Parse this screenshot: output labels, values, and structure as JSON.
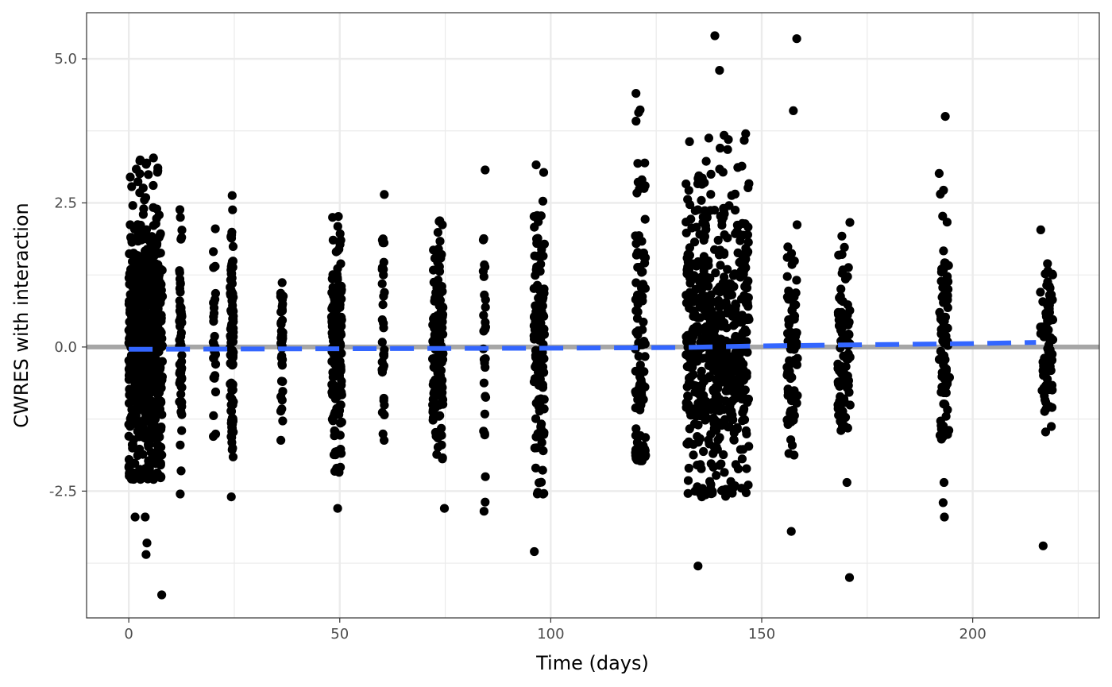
{
  "chart_data": {
    "type": "scatter",
    "xlabel": "Time (days)",
    "ylabel": "CWRES with interaction",
    "xlim": [
      -10,
      230
    ],
    "ylim": [
      -4.7,
      5.8
    ],
    "x_ticks": [
      0,
      50,
      100,
      150,
      200
    ],
    "x_tick_labels": [
      "0",
      "50",
      "100",
      "150",
      "200"
    ],
    "y_ticks": [
      -2.5,
      0.0,
      2.5,
      5.0
    ],
    "y_tick_labels": [
      "-2.5",
      "0.0",
      "2.5",
      "5.0"
    ],
    "grid": true,
    "reference_line": {
      "y": 0,
      "color": "#A6A6A6"
    },
    "trend_line": {
      "style": "dashed",
      "color": "#3366FF",
      "points": [
        [
          0,
          -0.04
        ],
        [
          50,
          -0.03
        ],
        [
          100,
          -0.02
        ],
        [
          130,
          -0.01
        ],
        [
          150,
          0.02
        ],
        [
          175,
          0.04
        ],
        [
          200,
          0.06
        ],
        [
          215,
          0.08
        ]
      ]
    },
    "point_color": "#000000",
    "visit_groups": [
      {
        "x": [
          0,
          8
        ],
        "range": [
          -2.3,
          3.3
        ],
        "n": 700
      },
      {
        "x": [
          12,
          12.6
        ],
        "range": [
          -1.7,
          2.6
        ],
        "n": 60
      },
      {
        "x": [
          20,
          20.6
        ],
        "range": [
          -1.7,
          2.2
        ],
        "n": 30
      },
      {
        "x": [
          24,
          24.8
        ],
        "range": [
          -2.6,
          2.9
        ],
        "n": 100
      },
      {
        "x": [
          36,
          36.6
        ],
        "range": [
          -1.7,
          1.8
        ],
        "n": 45
      },
      {
        "x": [
          48,
          50.5
        ],
        "range": [
          -2.2,
          2.5
        ],
        "n": 160
      },
      {
        "x": [
          60,
          60.6
        ],
        "range": [
          -1.8,
          3.4
        ],
        "n": 35
      },
      {
        "x": [
          72,
          74.5
        ],
        "range": [
          -2.0,
          2.5
        ],
        "n": 150
      },
      {
        "x": [
          84,
          84.6
        ],
        "range": [
          -2.9,
          3.2
        ],
        "n": 30
      },
      {
        "x": [
          96,
          98.5
        ],
        "range": [
          -2.6,
          3.3
        ],
        "n": 130
      },
      {
        "x": [
          120,
          122.5
        ],
        "range": [
          -2.0,
          4.4
        ],
        "n": 110
      },
      {
        "x": [
          132,
          147
        ],
        "range": [
          -2.6,
          3.7
        ],
        "n": 600
      },
      {
        "x": [
          156,
          158.5
        ],
        "range": [
          -2.1,
          2.2
        ],
        "n": 90
      },
      {
        "x": [
          168,
          171
        ],
        "range": [
          -1.5,
          2.3
        ],
        "n": 90
      },
      {
        "x": [
          192,
          194.5
        ],
        "range": [
          -1.6,
          3.3
        ],
        "n": 90
      },
      {
        "x": [
          216,
          219
        ],
        "range": [
          -1.6,
          2.1
        ],
        "n": 80
      }
    ],
    "outliers": [
      [
        1.5,
        -2.95
      ],
      [
        3.9,
        -2.95
      ],
      [
        4.1,
        -3.6
      ],
      [
        4.3,
        -3.4
      ],
      [
        7.8,
        -4.3
      ],
      [
        12.2,
        -2.55
      ],
      [
        12.4,
        -2.15
      ],
      [
        24.3,
        -2.6
      ],
      [
        49.5,
        -2.8
      ],
      [
        74.8,
        -2.8
      ],
      [
        84.2,
        -2.85
      ],
      [
        96.1,
        -3.55
      ],
      [
        120.2,
        4.4
      ],
      [
        134.9,
        -3.8
      ],
      [
        135.5,
        -2.55
      ],
      [
        135.8,
        -2.6
      ],
      [
        138.9,
        5.4
      ],
      [
        140.0,
        4.8
      ],
      [
        142.1,
        3.6
      ],
      [
        146.2,
        3.7
      ],
      [
        145.2,
        -2.45
      ],
      [
        157.0,
        -3.2
      ],
      [
        157.5,
        4.1
      ],
      [
        158.3,
        5.35
      ],
      [
        170.2,
        -2.35
      ],
      [
        170.8,
        -4.0
      ],
      [
        193.5,
        4.0
      ],
      [
        193.2,
        -2.35
      ],
      [
        193.0,
        -2.7
      ],
      [
        193.3,
        -2.95
      ],
      [
        216.7,
        -3.45
      ]
    ]
  }
}
